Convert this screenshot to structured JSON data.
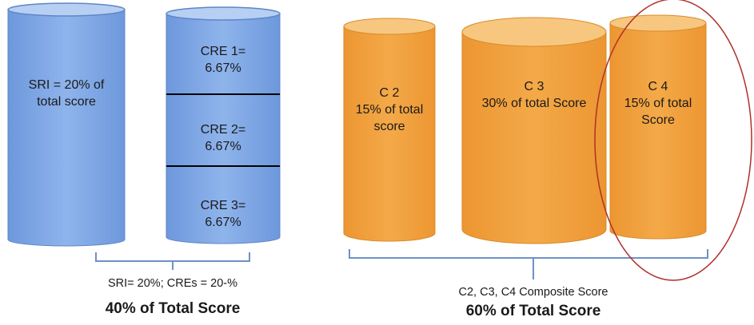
{
  "colors": {
    "blue_body": "#7ba6e6",
    "blue_top": "#b6cff3",
    "orange_body": "#f0a03a",
    "orange_top": "#f7c77f",
    "bracket_blue": "#6f90c6",
    "highlight_ellipse": "#b0302a",
    "divider_line": "#000000"
  },
  "left_group": {
    "sri_label": "SRI = 20% of\ntotal score",
    "cre_labels": [
      "CRE 1=\n6.67%",
      "CRE 2=\n6.67%",
      "CRE 3=\n6.67%"
    ],
    "caption": "SRI= 20%; CREs = 20-%",
    "total": "40% of Total Score"
  },
  "right_group": {
    "cylinders": [
      {
        "label": "C 2\n15% of total\nscore"
      },
      {
        "label": "C 3\n30% of total Score"
      },
      {
        "label": "C 4\n15% of total\nScore",
        "highlighted": true
      }
    ],
    "caption": "C2, C3, C4 Composite Score",
    "total": "60% of Total Score"
  }
}
